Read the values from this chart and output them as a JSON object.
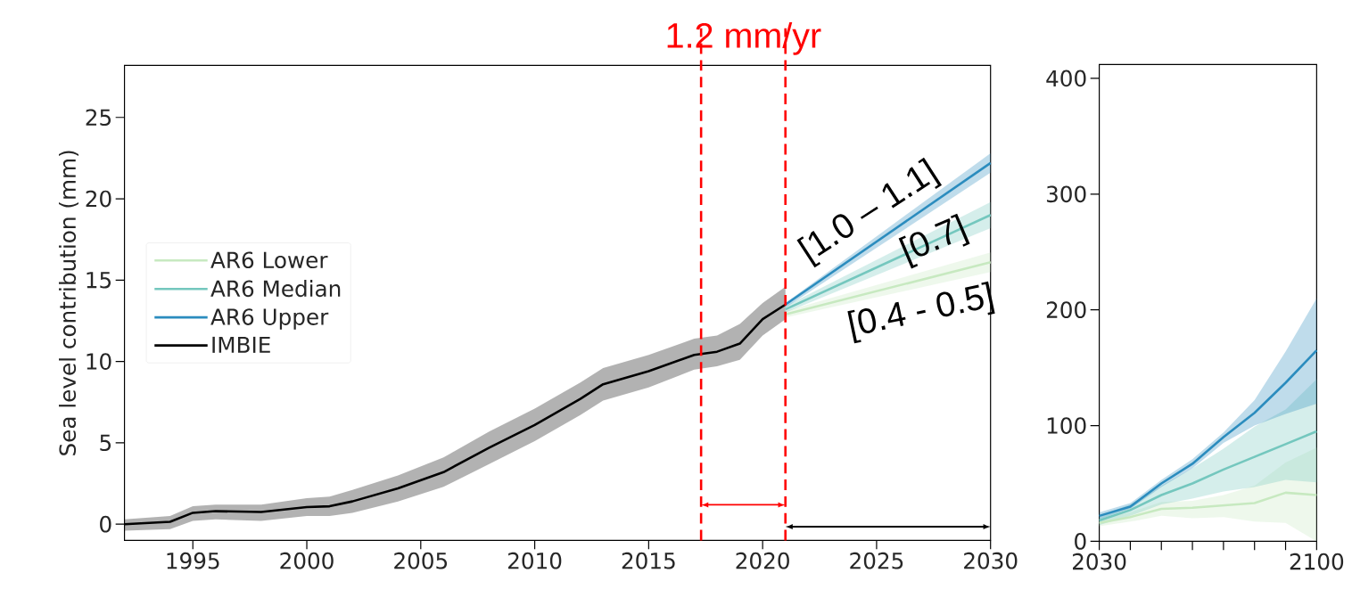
{
  "chart_data": [
    {
      "type": "line",
      "ylabel": "Sea level contribution (mm)",
      "xlim": [
        1992,
        2030
      ],
      "ylim": [
        -1,
        28.2
      ],
      "xticks": [
        1995,
        2000,
        2005,
        2010,
        2015,
        2020,
        2025,
        2030
      ],
      "yticks": [
        0,
        5,
        10,
        15,
        20,
        25
      ],
      "legend": "left",
      "ref_lines": [
        {
          "axis": "x",
          "value": 2017.3,
          "color": "#ff0000",
          "line_style": "dashed"
        },
        {
          "axis": "x",
          "value": 2021,
          "color": "#ff0000",
          "line_style": "dashed"
        }
      ],
      "annotations": [
        "1.2 mm/yr",
        "[1.0 – 1.1]",
        "[0.7]",
        "[0.4 - 0.5]"
      ],
      "series": [
        {
          "name": "AR6 Lower",
          "color": "#c7e9c0",
          "x": [
            2021,
            2030
          ],
          "values": [
            12.9,
            16.1
          ],
          "lower": [
            12.7,
            15.5
          ],
          "upper": [
            13.1,
            16.7
          ]
        },
        {
          "name": "AR6 Median",
          "color": "#74c7be",
          "x": [
            2021,
            2030
          ],
          "values": [
            13.2,
            19.0
          ],
          "lower": [
            13.0,
            18.2
          ],
          "upper": [
            13.4,
            19.8
          ]
        },
        {
          "name": "AR6 Upper",
          "color": "#2b8cbe",
          "x": [
            2021,
            2030
          ],
          "values": [
            13.5,
            22.2
          ],
          "lower": [
            13.3,
            21.6
          ],
          "upper": [
            13.6,
            22.8
          ]
        },
        {
          "name": "IMBIE",
          "color": "#000000",
          "x": [
            1992,
            1994,
            1995,
            1996,
            1998,
            2000,
            2001,
            2002,
            2004,
            2006,
            2008,
            2010,
            2012,
            2013,
            2015,
            2017,
            2018,
            2019,
            2020,
            2021
          ],
          "values": [
            0,
            0.15,
            0.7,
            0.8,
            0.75,
            1.05,
            1.1,
            1.4,
            2.2,
            3.2,
            4.7,
            6.1,
            7.7,
            8.6,
            9.4,
            10.4,
            10.6,
            11.1,
            12.6,
            13.5
          ],
          "lower": [
            -0.4,
            -0.3,
            0.2,
            0.3,
            0.2,
            0.5,
            0.5,
            0.7,
            1.4,
            2.3,
            3.7,
            5.1,
            6.7,
            7.6,
            8.4,
            9.5,
            9.7,
            10.1,
            11.6,
            12.6
          ],
          "upper": [
            0.3,
            0.5,
            1.1,
            1.2,
            1.2,
            1.6,
            1.7,
            2.1,
            3.0,
            4.1,
            5.7,
            7.1,
            8.7,
            9.6,
            10.4,
            11.4,
            11.6,
            12.3,
            13.6,
            14.6
          ]
        }
      ]
    },
    {
      "type": "line",
      "xlim": [
        2030,
        2100
      ],
      "ylim": [
        0,
        412
      ],
      "xticks": [
        2030,
        {
          "value": 2040,
          "label": null
        },
        {
          "value": 2050,
          "label": null
        },
        {
          "value": 2060,
          "label": null
        },
        {
          "value": 2070,
          "label": null
        },
        {
          "value": 2080,
          "label": null
        },
        {
          "value": 2090,
          "label": null
        },
        2100
      ],
      "yticks": [
        0,
        100,
        200,
        300,
        400
      ],
      "series": [
        {
          "color": "#c7e9c0",
          "x": [
            2030,
            2040,
            2050,
            2060,
            2070,
            2080,
            2090,
            2100
          ],
          "values": [
            16,
            21,
            28,
            29,
            31,
            33,
            42,
            40
          ],
          "lower": [
            13,
            17,
            22,
            20,
            21,
            17,
            16,
            0
          ],
          "upper": [
            19,
            25,
            34,
            35,
            40,
            48,
            68,
            81
          ]
        },
        {
          "color": "#74c7be",
          "x": [
            2030,
            2040,
            2050,
            2060,
            2070,
            2080,
            2090,
            2100
          ],
          "values": [
            18,
            27,
            40,
            50,
            62,
            73,
            84,
            95
          ],
          "lower": [
            14,
            22,
            32,
            37,
            43,
            47,
            53,
            51
          ],
          "upper": [
            22,
            32,
            48,
            63,
            80,
            99,
            114,
            140
          ]
        },
        {
          "color": "#2b8cbe",
          "x": [
            2030,
            2040,
            2050,
            2060,
            2070,
            2080,
            2090,
            2100
          ],
          "values": [
            22,
            30,
            50,
            67,
            90,
            111,
            137,
            165
          ],
          "lower": [
            19,
            28,
            47,
            63,
            85,
            100,
            110,
            119
          ],
          "upper": [
            25,
            33,
            53,
            71,
            94,
            122,
            164,
            210
          ]
        }
      ]
    }
  ]
}
